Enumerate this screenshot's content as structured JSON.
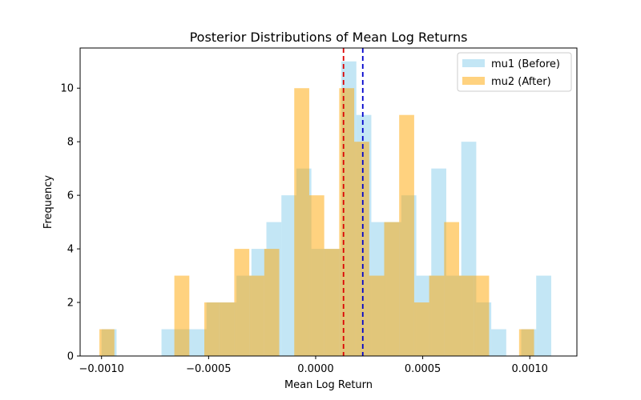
{
  "chart_data": {
    "type": "histogram",
    "title": "Posterior Distributions of Mean Log Returns",
    "xlabel": "Mean Log Return",
    "ylabel": "Frequency",
    "xlim": [
      -0.0011,
      0.00122
    ],
    "ylim": [
      0,
      11.5
    ],
    "x_ticks": [
      -0.001,
      -0.0005,
      0.0,
      0.0005,
      0.001
    ],
    "x_tick_labels": [
      "−0.0010",
      "−0.0005",
      "0.0000",
      "0.0005",
      "0.0010"
    ],
    "y_ticks": [
      0,
      2,
      4,
      6,
      8,
      10
    ],
    "y_tick_labels": [
      "0",
      "2",
      "4",
      "6",
      "8",
      "10"
    ],
    "legend_position": "top-right",
    "series": [
      {
        "name": "mu1 (Before)",
        "color": "#87ceeb",
        "alpha": 0.5,
        "bin_width": 7e-05,
        "bins": [
          {
            "x0": -0.001,
            "x1": -0.00093,
            "count": 1
          },
          {
            "x0": -0.00093,
            "x1": -0.00086,
            "count": 0
          },
          {
            "x0": -0.00086,
            "x1": -0.00079,
            "count": 0
          },
          {
            "x0": -0.00079,
            "x1": -0.00072,
            "count": 0
          },
          {
            "x0": -0.00072,
            "x1": -0.00065,
            "count": 1
          },
          {
            "x0": -0.00065,
            "x1": -0.00058,
            "count": 1
          },
          {
            "x0": -0.00058,
            "x1": -0.00051,
            "count": 1
          },
          {
            "x0": -0.00051,
            "x1": -0.00044,
            "count": 2
          },
          {
            "x0": -0.00044,
            "x1": -0.00037,
            "count": 2
          },
          {
            "x0": -0.00037,
            "x1": -0.0003,
            "count": 3
          },
          {
            "x0": -0.0003,
            "x1": -0.00023,
            "count": 4
          },
          {
            "x0": -0.00023,
            "x1": -0.00016,
            "count": 5
          },
          {
            "x0": -0.00016,
            "x1": -9e-05,
            "count": 6
          },
          {
            "x0": -9e-05,
            "x1": -2e-05,
            "count": 7
          },
          {
            "x0": -2e-05,
            "x1": 5e-05,
            "count": 4
          },
          {
            "x0": 5e-05,
            "x1": 0.00012,
            "count": 4
          },
          {
            "x0": 0.00012,
            "x1": 0.00019,
            "count": 11
          },
          {
            "x0": 0.00019,
            "x1": 0.00026,
            "count": 9
          },
          {
            "x0": 0.00026,
            "x1": 0.00033,
            "count": 5
          },
          {
            "x0": 0.00033,
            "x1": 0.0004,
            "count": 5
          },
          {
            "x0": 0.0004,
            "x1": 0.00047,
            "count": 6
          },
          {
            "x0": 0.00047,
            "x1": 0.00054,
            "count": 3
          },
          {
            "x0": 0.00054,
            "x1": 0.00061,
            "count": 7
          },
          {
            "x0": 0.00061,
            "x1": 0.00068,
            "count": 3
          },
          {
            "x0": 0.00068,
            "x1": 0.00075,
            "count": 8
          },
          {
            "x0": 0.00075,
            "x1": 0.00082,
            "count": 2
          },
          {
            "x0": 0.00082,
            "x1": 0.00089,
            "count": 1
          },
          {
            "x0": 0.00089,
            "x1": 0.00096,
            "count": 0
          },
          {
            "x0": 0.00096,
            "x1": 0.00103,
            "count": 1
          },
          {
            "x0": 0.00103,
            "x1": 0.0011,
            "count": 3
          }
        ],
        "mean_line": {
          "x": 0.00022,
          "color": "#0000cc"
        }
      },
      {
        "name": "mu2 (After)",
        "color": "#ffa500",
        "alpha": 0.5,
        "bin_width": 7e-05,
        "bins": [
          {
            "x0": -0.00101,
            "x1": -0.00094,
            "count": 1
          },
          {
            "x0": -0.00094,
            "x1": -0.00087,
            "count": 0
          },
          {
            "x0": -0.00087,
            "x1": -0.0008,
            "count": 0
          },
          {
            "x0": -0.0008,
            "x1": -0.00073,
            "count": 0
          },
          {
            "x0": -0.00073,
            "x1": -0.00066,
            "count": 0
          },
          {
            "x0": -0.00066,
            "x1": -0.00059,
            "count": 3
          },
          {
            "x0": -0.00059,
            "x1": -0.00052,
            "count": 0
          },
          {
            "x0": -0.00052,
            "x1": -0.00045,
            "count": 2
          },
          {
            "x0": -0.00045,
            "x1": -0.00038,
            "count": 2
          },
          {
            "x0": -0.00038,
            "x1": -0.00031,
            "count": 4
          },
          {
            "x0": -0.00031,
            "x1": -0.00024,
            "count": 3
          },
          {
            "x0": -0.00024,
            "x1": -0.00017,
            "count": 4
          },
          {
            "x0": -0.00017,
            "x1": -0.0001,
            "count": 0
          },
          {
            "x0": -0.0001,
            "x1": -3e-05,
            "count": 10
          },
          {
            "x0": -3e-05,
            "x1": 4e-05,
            "count": 6
          },
          {
            "x0": 4e-05,
            "x1": 0.00011,
            "count": 4
          },
          {
            "x0": 0.00011,
            "x1": 0.00018,
            "count": 10
          },
          {
            "x0": 0.00018,
            "x1": 0.00025,
            "count": 8
          },
          {
            "x0": 0.00025,
            "x1": 0.00032,
            "count": 3
          },
          {
            "x0": 0.00032,
            "x1": 0.00039,
            "count": 5
          },
          {
            "x0": 0.00039,
            "x1": 0.00046,
            "count": 9
          },
          {
            "x0": 0.00046,
            "x1": 0.00053,
            "count": 2
          },
          {
            "x0": 0.00053,
            "x1": 0.0006,
            "count": 3
          },
          {
            "x0": 0.0006,
            "x1": 0.00067,
            "count": 5
          },
          {
            "x0": 0.00067,
            "x1": 0.00074,
            "count": 3
          },
          {
            "x0": 0.00074,
            "x1": 0.00081,
            "count": 3
          },
          {
            "x0": 0.00081,
            "x1": 0.00088,
            "count": 0
          },
          {
            "x0": 0.00088,
            "x1": 0.00095,
            "count": 0
          },
          {
            "x0": 0.00095,
            "x1": 0.00102,
            "count": 1
          },
          {
            "x0": 0.00102,
            "x1": 0.00109,
            "count": 0
          }
        ],
        "mean_line": {
          "x": 0.00013,
          "color": "#dd0000"
        }
      }
    ]
  }
}
